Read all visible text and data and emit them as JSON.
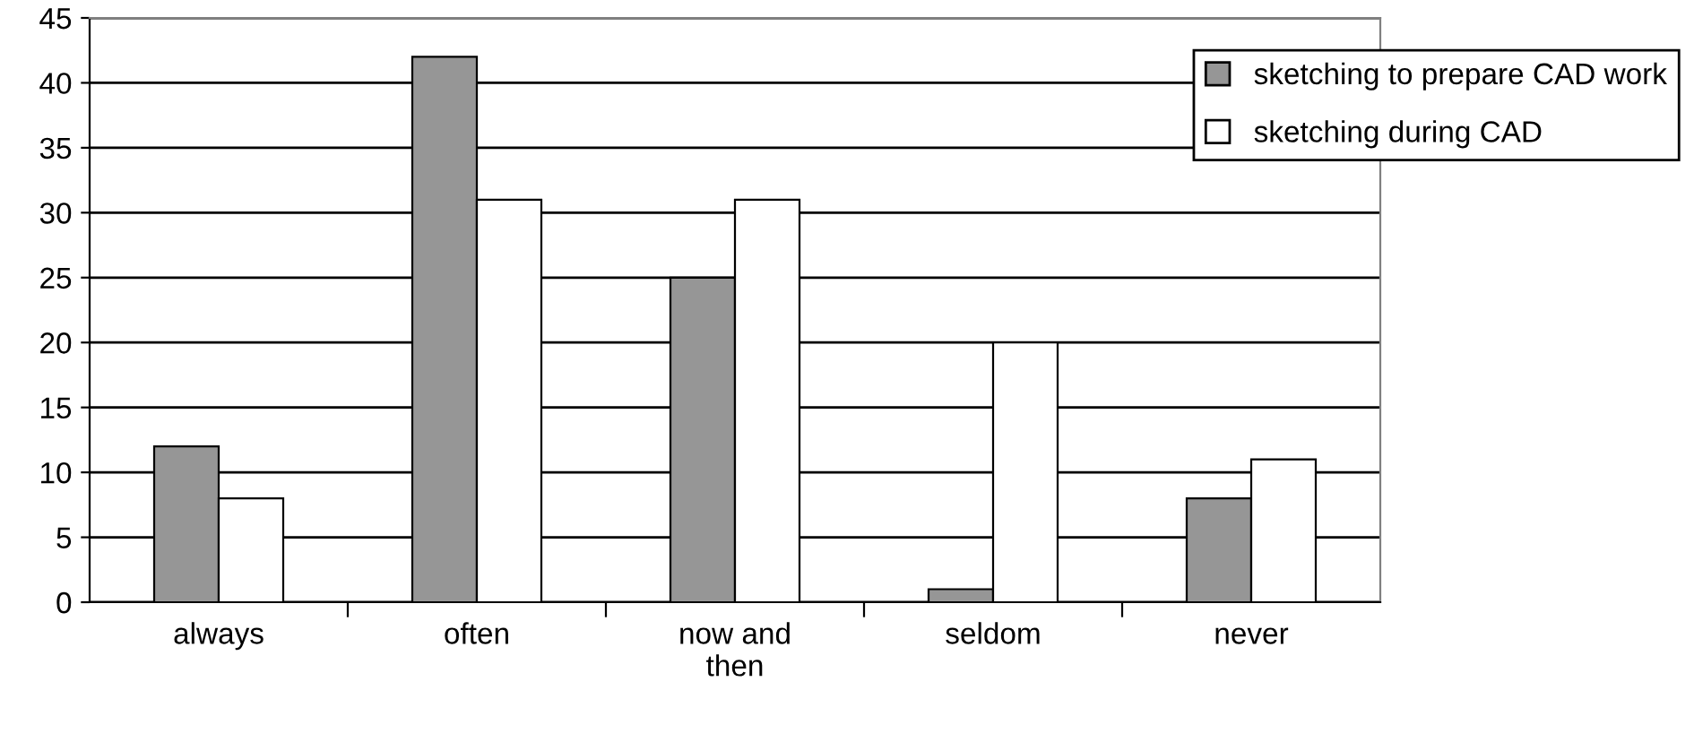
{
  "chart_data": {
    "type": "bar",
    "categories": [
      "always",
      "often",
      "now and\nthen",
      "seldom",
      "never"
    ],
    "series": [
      {
        "name": "sketching to prepare CAD work",
        "color": "#969696",
        "values": [
          12,
          42,
          25,
          1,
          8
        ]
      },
      {
        "name": "sketching during CAD",
        "color": "#ffffff",
        "values": [
          8,
          31,
          31,
          20,
          11
        ]
      }
    ],
    "ylim": [
      0,
      45
    ],
    "yticks": [
      0,
      5,
      10,
      15,
      20,
      25,
      30,
      35,
      40,
      45
    ],
    "grid": "y",
    "legend": "top right"
  }
}
